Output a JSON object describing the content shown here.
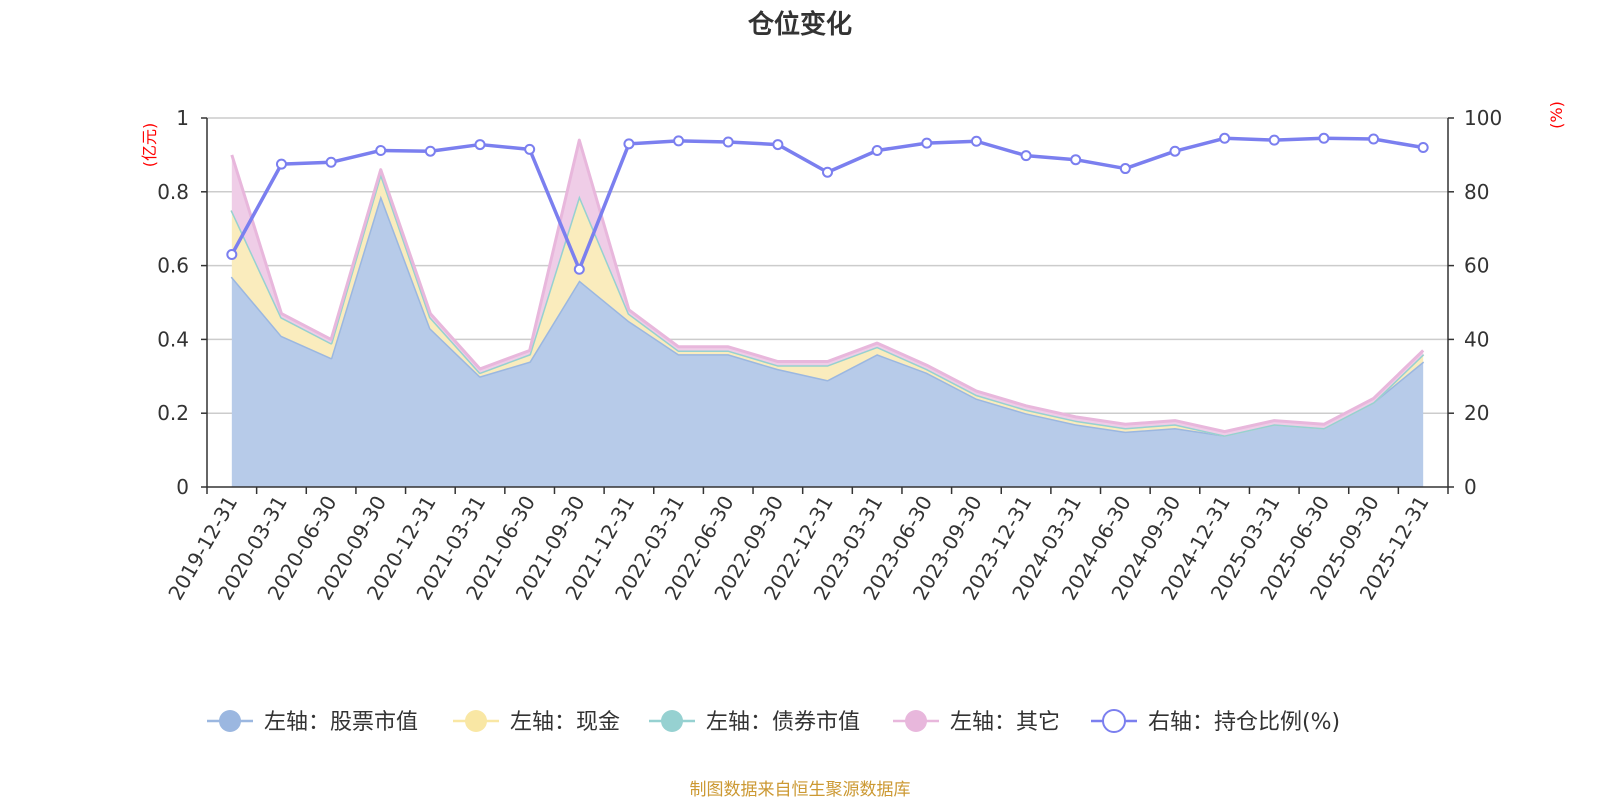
{
  "chart_data": {
    "type": "area",
    "title": "仓位变化",
    "left_unit": "(亿元)",
    "right_unit": "(%)",
    "categories": [
      "2019-12-31",
      "2020-03-31",
      "2020-06-30",
      "2020-09-30",
      "2020-12-31",
      "2021-03-31",
      "2021-06-30",
      "2021-09-30",
      "2021-12-31",
      "2022-03-31",
      "2022-06-30",
      "2022-09-30",
      "2022-12-31",
      "2023-03-31",
      "2023-06-30",
      "2023-09-30",
      "2023-12-31",
      "2024-03-31",
      "2024-06-30",
      "2024-09-30",
      "2024-12-31",
      "2025-03-31",
      "2025-06-30",
      "2025-09-30",
      "2025-12-31"
    ],
    "left_axis": {
      "min": 0,
      "max": 1,
      "ticks": [
        "0",
        "0.2",
        "0.4",
        "0.6",
        "0.8",
        "1"
      ]
    },
    "right_axis": {
      "min": 0,
      "max": 100,
      "ticks": [
        "0",
        "20",
        "40",
        "60",
        "80",
        "100"
      ]
    },
    "series": [
      {
        "name": "左轴：股票市值",
        "axis": "left",
        "stack": true,
        "color": "#9bb7e0",
        "fill": "#b7cbe9",
        "values": [
          0.57,
          0.41,
          0.35,
          0.79,
          0.43,
          0.3,
          0.34,
          0.56,
          0.45,
          0.36,
          0.36,
          0.32,
          0.29,
          0.36,
          0.31,
          0.24,
          0.2,
          0.17,
          0.15,
          0.16,
          0.14,
          0.17,
          0.16,
          0.23,
          0.34
        ]
      },
      {
        "name": "左轴：现金",
        "axis": "left",
        "stack": true,
        "color": "#f9e7a4",
        "fill": "#faecbd",
        "values": [
          0.18,
          0.05,
          0.04,
          0.06,
          0.03,
          0.01,
          0.02,
          0.23,
          0.02,
          0.01,
          0.01,
          0.01,
          0.04,
          0.02,
          0.01,
          0.01,
          0.01,
          0.01,
          0.01,
          0.01,
          0.0,
          0.0,
          0.0,
          0.0,
          0.02
        ]
      },
      {
        "name": "左轴：债券市值",
        "axis": "left",
        "stack": true,
        "color": "#96d1d1",
        "fill": "#b9e2e2",
        "values": [
          0,
          0,
          0,
          0,
          0,
          0,
          0,
          0,
          0,
          0,
          0,
          0,
          0,
          0,
          0,
          0,
          0,
          0,
          0,
          0,
          0,
          0,
          0,
          0,
          0
        ]
      },
      {
        "name": "左轴：其它",
        "axis": "left",
        "stack": true,
        "color": "#e8b7dc",
        "fill": "#efcde7",
        "values": [
          0.15,
          0.01,
          0.01,
          0.01,
          0.01,
          0.01,
          0.01,
          0.15,
          0.01,
          0.01,
          0.01,
          0.01,
          0.01,
          0.01,
          0.01,
          0.01,
          0.01,
          0.01,
          0.01,
          0.01,
          0.01,
          0.01,
          0.01,
          0.01,
          0.01
        ]
      },
      {
        "name": "右轴：持仓比例(%)",
        "axis": "right",
        "stack": false,
        "color": "#7b7fef",
        "values": [
          63,
          87.5,
          88,
          91.2,
          91,
          92.8,
          91.5,
          59,
          93,
          93.8,
          93.5,
          92.8,
          85.3,
          91.2,
          93.2,
          93.7,
          89.8,
          88.7,
          86.3,
          91,
          94.5,
          94,
          94.5,
          94.3,
          92
        ]
      }
    ]
  },
  "footer": "制图数据来自恒生聚源数据库",
  "colors": {
    "axis": "#333333",
    "grid": "#cccccc",
    "unit": "#ff0000",
    "footer": "#cc9933"
  }
}
